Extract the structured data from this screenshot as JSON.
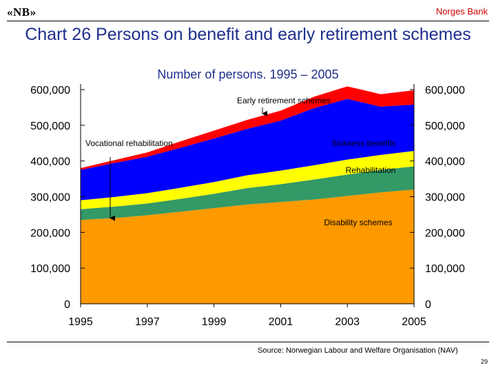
{
  "header": {
    "logo_text": "«NB»",
    "brand": "Norges Bank"
  },
  "footer": {
    "source": "Source: Norwegian Labour and Welfare Organisation (NAV)",
    "page_number": "29"
  },
  "chart_data": {
    "type": "area",
    "stacked": true,
    "title": "Chart 26 Persons on benefit and early retirement schemes",
    "subtitle": "Number of persons. 1995 – 2005",
    "x": [
      1995,
      1996,
      1997,
      1998,
      1999,
      2000,
      2001,
      2002,
      2003,
      2004,
      2005
    ],
    "x_tick_labels": [
      "1995",
      "1997",
      "1999",
      "2001",
      "2003",
      "2005"
    ],
    "x_ticks": [
      1995,
      1997,
      1999,
      2001,
      2003,
      2005
    ],
    "ylim": [
      0,
      600000
    ],
    "y_ticks": [
      0,
      100000,
      200000,
      300000,
      400000,
      500000,
      600000
    ],
    "y_tick_labels": [
      "0",
      "100,000",
      "200,000",
      "300,000",
      "400,000",
      "500,000",
      "600,000"
    ],
    "grid": false,
    "series": [
      {
        "name": "Disability schemes",
        "color": "#ff9900",
        "values": [
          235000,
          240000,
          248000,
          258000,
          268000,
          278000,
          285000,
          292000,
          302000,
          312000,
          320000
        ]
      },
      {
        "name": "Rehabilitation",
        "color": "#339966",
        "values": [
          30000,
          32000,
          33000,
          36000,
          40000,
          46000,
          50000,
          56000,
          60000,
          63000,
          65000
        ]
      },
      {
        "name": "Sickness benefits",
        "color": "#ffff00",
        "values": [
          25000,
          27000,
          29000,
          31000,
          33000,
          36000,
          38000,
          40000,
          42000,
          42000,
          43000
        ]
      },
      {
        "name": "Vocational rehabilitation",
        "color": "#0000ff",
        "values": [
          85000,
          95000,
          102000,
          112000,
          122000,
          130000,
          140000,
          160000,
          170000,
          135000,
          130000
        ]
      },
      {
        "name": "Early retirement schemes",
        "color": "#ff0000",
        "values": [
          5000,
          8000,
          12000,
          18000,
          22000,
          25000,
          28000,
          32000,
          35000,
          35000,
          40000
        ]
      }
    ],
    "annotations": [
      {
        "text": "Early retirement schemes",
        "series": "Early retirement schemes"
      },
      {
        "text": "Vocational rehabilitation",
        "series": "Vocational rehabilitation"
      },
      {
        "text": "Sickness benefits",
        "series": "Sickness benefits"
      },
      {
        "text": "Rehabilitation",
        "series": "Rehabilitation"
      },
      {
        "text": "Disability schemes",
        "series": "Disability schemes"
      }
    ]
  }
}
